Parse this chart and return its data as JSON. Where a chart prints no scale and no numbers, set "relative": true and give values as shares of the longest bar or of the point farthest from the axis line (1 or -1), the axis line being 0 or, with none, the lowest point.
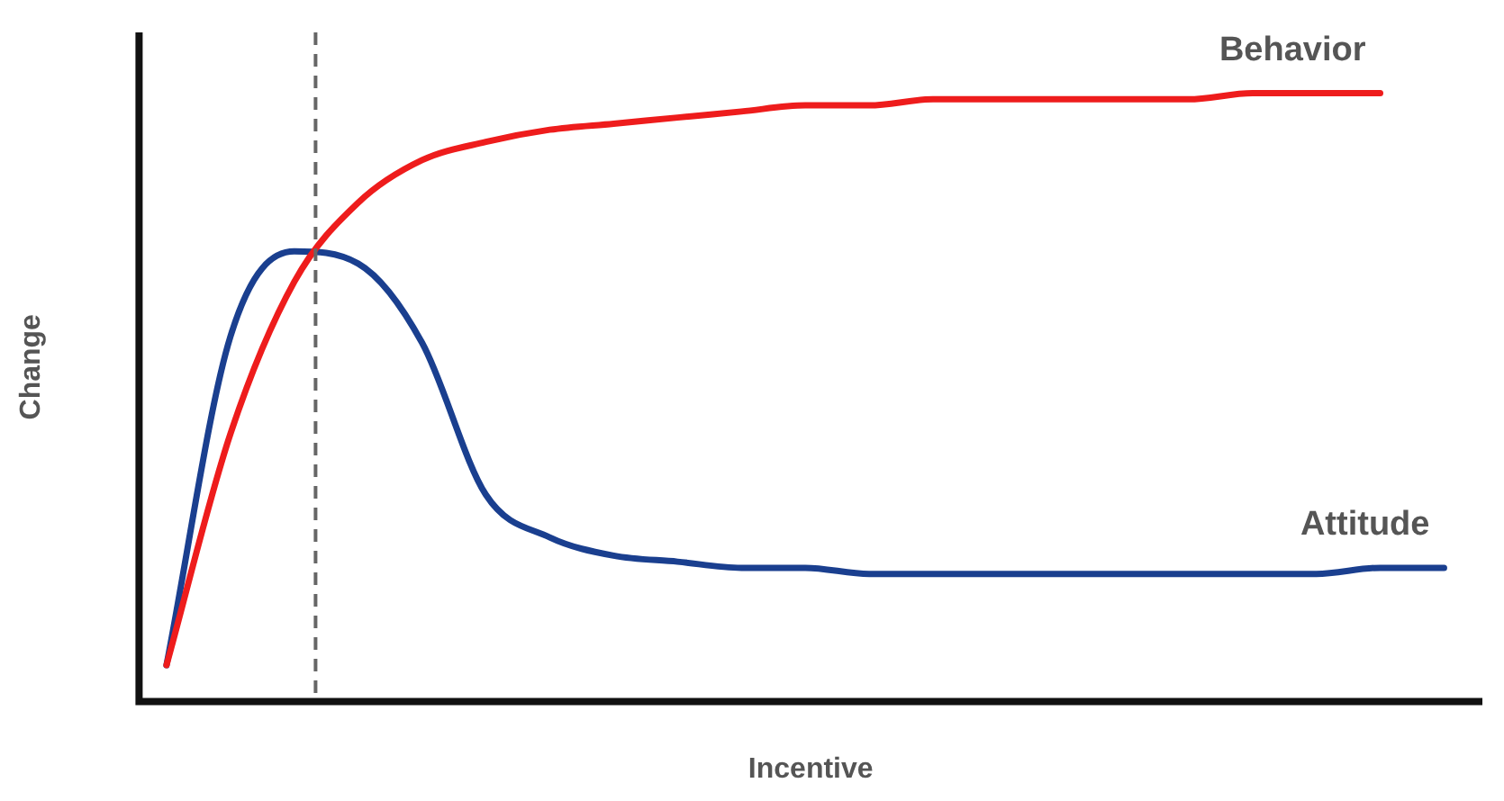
{
  "chart_data": {
    "type": "line",
    "relative": true,
    "xlabel": "Incentive",
    "ylabel": "Change",
    "categories": [
      null,
      null,
      null,
      null,
      null,
      null,
      null,
      null,
      null,
      null,
      null,
      null,
      null,
      null,
      null,
      null,
      null,
      null,
      null,
      null,
      null
    ],
    "series": [
      {
        "name": "Behavior",
        "color": "#ee1c1c",
        "values": [
          0.06,
          0.44,
          0.69,
          0.82,
          0.89,
          0.92,
          0.94,
          0.95,
          0.96,
          0.97,
          0.98,
          0.98,
          0.99,
          0.99,
          0.99,
          0.99,
          0.99,
          1,
          1,
          1,
          null
        ]
      },
      {
        "name": "Attitude",
        "color": "#1a3f8f",
        "values": [
          0.06,
          0.6,
          0.74,
          0.72,
          0.59,
          0.34,
          0.27,
          0.24,
          0.23,
          0.22,
          0.22,
          0.21,
          0.21,
          0.21,
          0.21,
          0.21,
          0.21,
          0.21,
          0.21,
          0.22,
          0.22
        ]
      }
    ],
    "legend": false,
    "grid": false,
    "marker": "none",
    "line_style": "solid",
    "tick_labels": false
  }
}
